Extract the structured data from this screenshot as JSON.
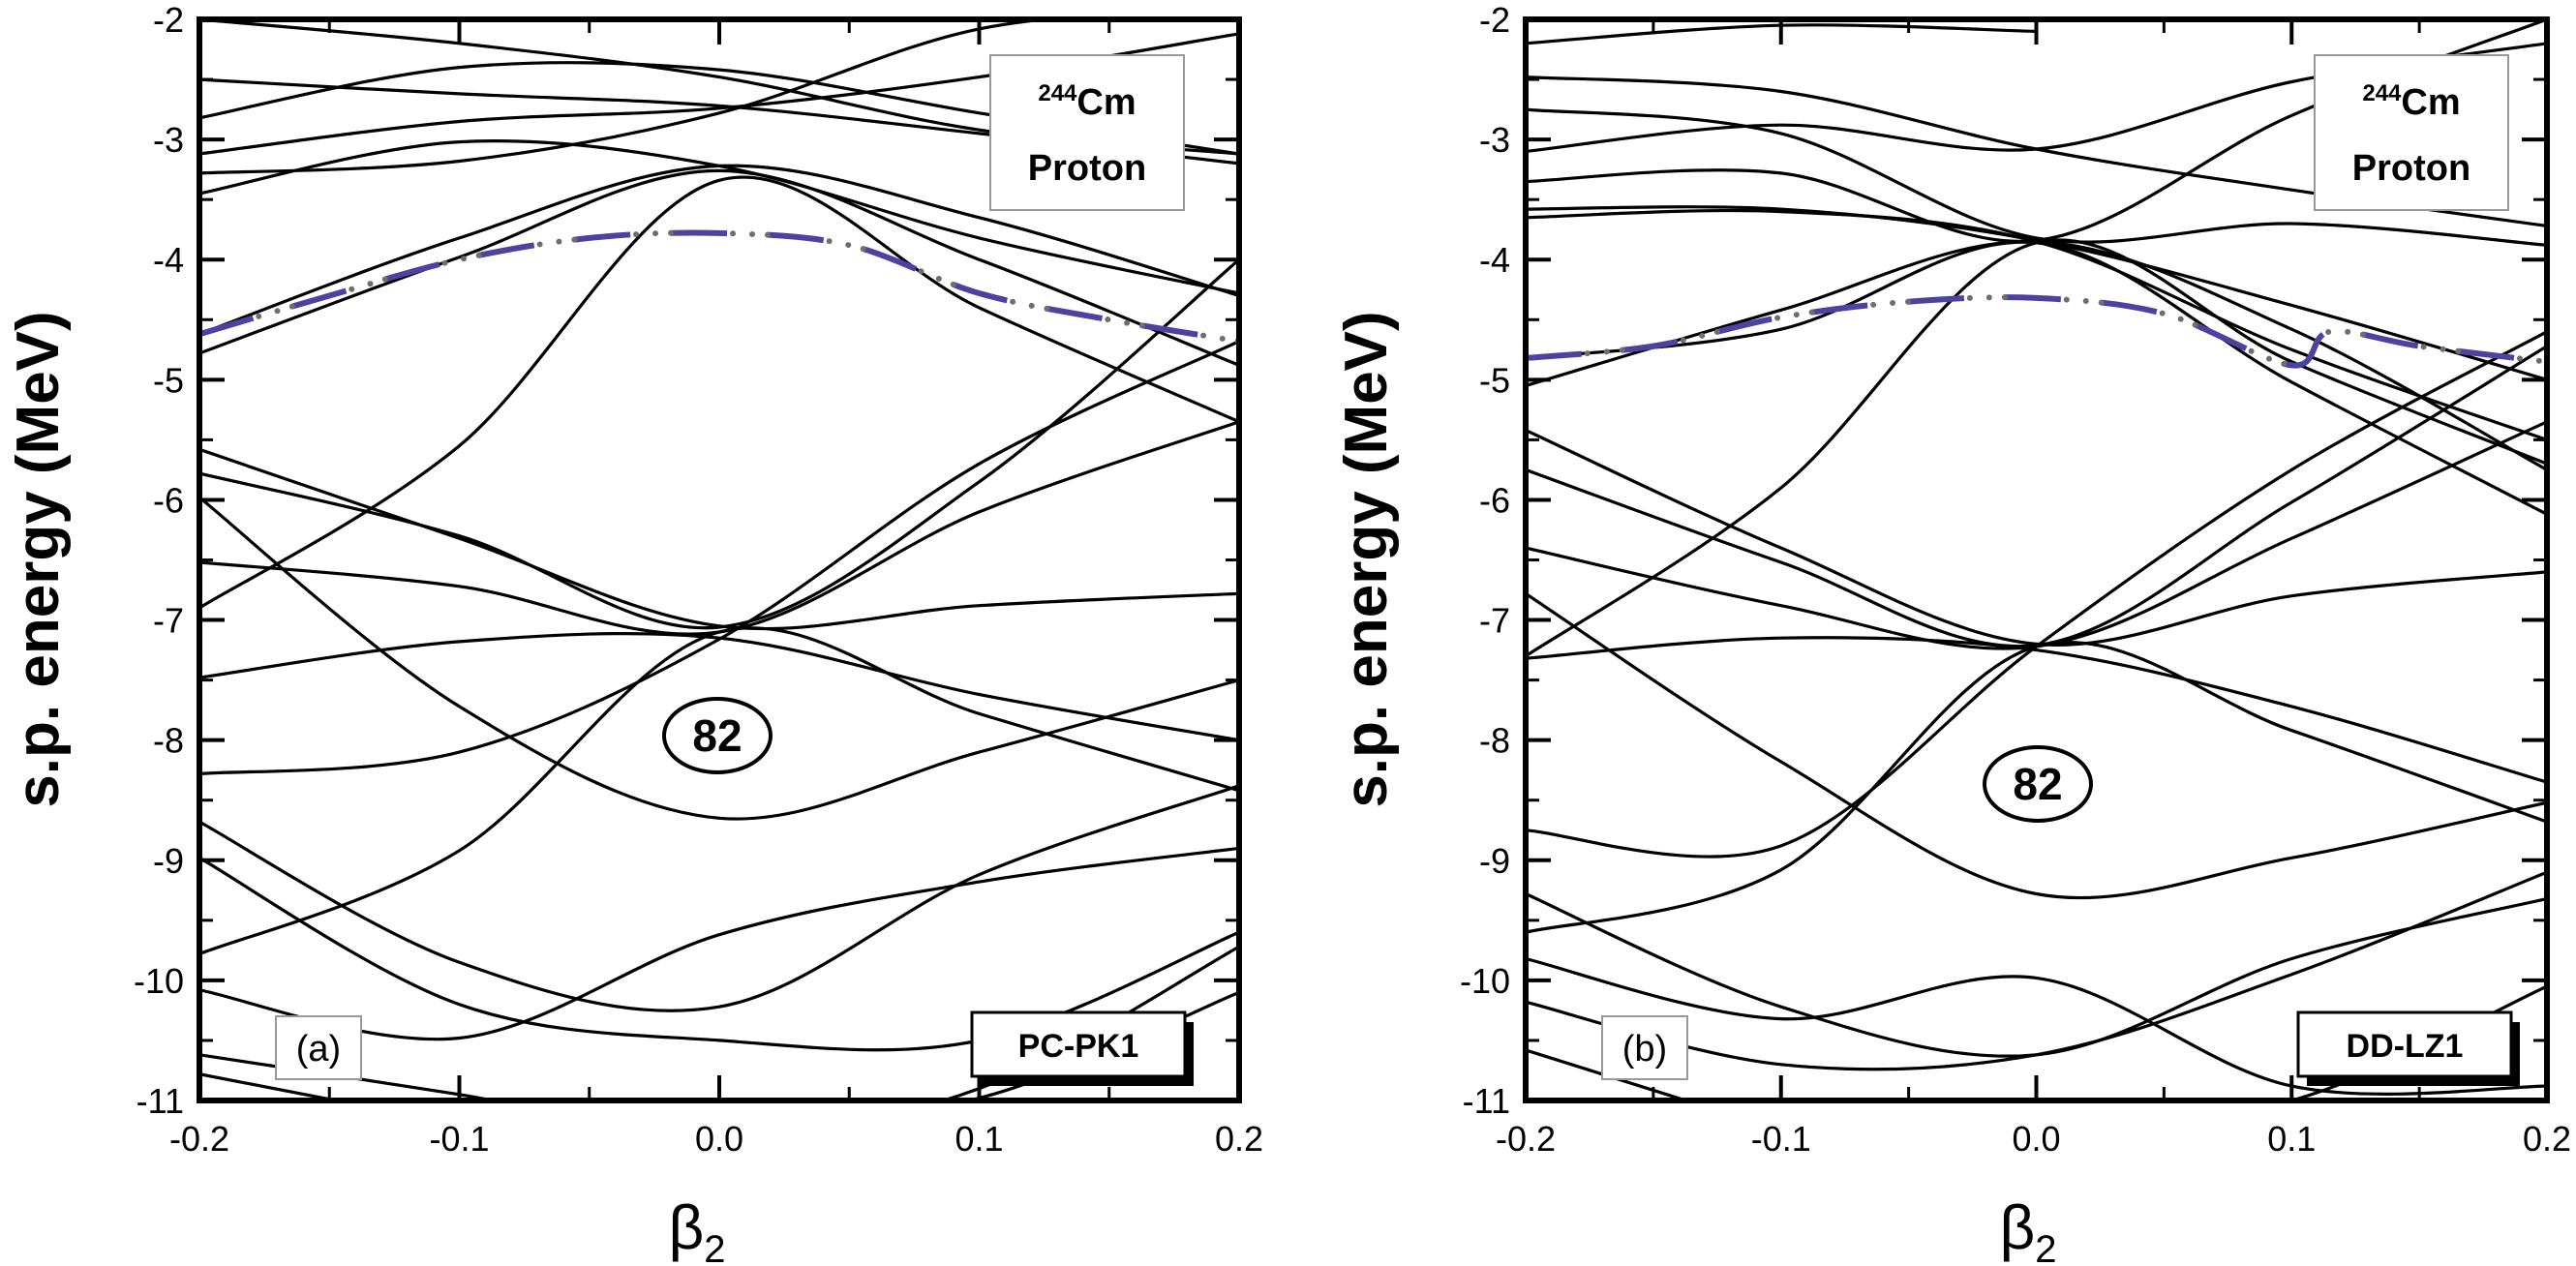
{
  "chart_data": [
    {
      "type": "line",
      "panel_label": "(a)",
      "model": "PC-PK1",
      "nucleus_mass": "244",
      "nucleus_symbol": "Cm",
      "particle": "Proton",
      "magic_number": "82",
      "xlabel": "β",
      "xlabel_sub": "2",
      "ylabel": "s.p. energy (MeV)",
      "xlim": [
        -0.2,
        0.2
      ],
      "ylim": [
        -11,
        -2
      ],
      "xticks": [
        "-0.2",
        "-0.1",
        "0.0",
        "0.1",
        "0.2"
      ],
      "yticks": [
        "-2",
        "-3",
        "-4",
        "-5",
        "-6",
        "-7",
        "-8",
        "-9",
        "-10",
        "-11"
      ],
      "grid": false,
      "fermi_level": {
        "style": "dash-dot",
        "color": "#4a44a0",
        "points": [
          [
            -0.2,
            -4.62
          ],
          [
            -0.15,
            -4.3
          ],
          [
            -0.1,
            -4.0
          ],
          [
            -0.05,
            -3.82
          ],
          [
            0.0,
            -3.78
          ],
          [
            0.05,
            -3.88
          ],
          [
            0.1,
            -4.28
          ],
          [
            0.15,
            -4.5
          ],
          [
            0.2,
            -4.68
          ]
        ]
      },
      "series": [
        {
          "points": [
            [
              -0.2,
              -2.0
            ],
            [
              -0.1,
              -2.2
            ],
            [
              0.0,
              -2.48
            ],
            [
              0.1,
              -2.92
            ],
            [
              0.2,
              -3.12
            ]
          ]
        },
        {
          "points": [
            [
              -0.2,
              -2.5
            ],
            [
              -0.1,
              -2.62
            ],
            [
              0.0,
              -2.72
            ],
            [
              0.1,
              -2.95
            ],
            [
              0.2,
              -3.2
            ]
          ]
        },
        {
          "points": [
            [
              -0.2,
              -2.82
            ],
            [
              -0.1,
              -2.4
            ],
            [
              0.0,
              -2.42
            ],
            [
              0.1,
              -2.78
            ],
            [
              0.2,
              -3.12
            ]
          ]
        },
        {
          "points": [
            [
              -0.2,
              -3.12
            ],
            [
              -0.1,
              -2.85
            ],
            [
              0.0,
              -2.74
            ],
            [
              0.1,
              -2.48
            ],
            [
              0.2,
              -2.12
            ]
          ]
        },
        {
          "points": [
            [
              -0.2,
              -3.28
            ],
            [
              -0.1,
              -3.18
            ],
            [
              0.0,
              -2.78
            ],
            [
              0.1,
              -2.08
            ],
            [
              0.2,
              -1.9
            ]
          ]
        },
        {
          "points": [
            [
              -0.2,
              -3.45
            ],
            [
              -0.1,
              -3.02
            ],
            [
              0.0,
              -3.22
            ],
            [
              0.1,
              -3.82
            ],
            [
              0.2,
              -4.28
            ]
          ]
        },
        {
          "points": [
            [
              -0.2,
              -4.62
            ],
            [
              -0.1,
              -3.82
            ],
            [
              0.0,
              -3.22
            ],
            [
              0.1,
              -3.65
            ],
            [
              0.2,
              -4.3
            ]
          ]
        },
        {
          "points": [
            [
              -0.2,
              -4.78
            ],
            [
              -0.1,
              -3.98
            ],
            [
              0.0,
              -3.26
            ],
            [
              0.1,
              -4.0
            ],
            [
              0.2,
              -4.88
            ]
          ]
        },
        {
          "points": [
            [
              -0.2,
              -6.9
            ],
            [
              -0.1,
              -5.55
            ],
            [
              0.0,
              -3.34
            ],
            [
              0.1,
              -4.4
            ],
            [
              0.2,
              -5.35
            ]
          ]
        },
        {
          "points": [
            [
              -0.2,
              -5.58
            ],
            [
              -0.1,
              -6.32
            ],
            [
              0.0,
              -7.05
            ],
            [
              0.1,
              -6.88
            ],
            [
              0.2,
              -6.78
            ]
          ]
        },
        {
          "points": [
            [
              -0.2,
              -5.78
            ],
            [
              -0.1,
              -6.3
            ],
            [
              0.0,
              -7.06
            ],
            [
              0.1,
              -5.85
            ],
            [
              0.2,
              -4.0
            ]
          ]
        },
        {
          "points": [
            [
              -0.2,
              -6.52
            ],
            [
              -0.1,
              -6.72
            ],
            [
              0.0,
              -7.1
            ],
            [
              0.1,
              -6.1
            ],
            [
              0.2,
              -5.35
            ]
          ]
        },
        {
          "points": [
            [
              -0.2,
              -7.48
            ],
            [
              -0.1,
              -7.18
            ],
            [
              0.0,
              -7.15
            ],
            [
              0.1,
              -7.62
            ],
            [
              0.2,
              -8.0
            ]
          ]
        },
        {
          "points": [
            [
              -0.2,
              -8.28
            ],
            [
              -0.1,
              -8.1
            ],
            [
              0.0,
              -7.16
            ],
            [
              0.1,
              -5.7
            ],
            [
              0.2,
              -4.68
            ]
          ]
        },
        {
          "points": [
            [
              -0.2,
              -5.98
            ],
            [
              -0.1,
              -7.72
            ],
            [
              0.0,
              -8.65
            ],
            [
              0.1,
              -8.1
            ],
            [
              0.2,
              -7.5
            ]
          ]
        },
        {
          "points": [
            [
              -0.2,
              -9.78
            ],
            [
              -0.1,
              -8.92
            ],
            [
              0.0,
              -7.1
            ],
            [
              0.1,
              -7.78
            ],
            [
              0.2,
              -8.42
            ]
          ]
        },
        {
          "points": [
            [
              -0.2,
              -8.68
            ],
            [
              -0.1,
              -9.85
            ],
            [
              0.0,
              -10.22
            ],
            [
              0.1,
              -9.12
            ],
            [
              0.2,
              -8.38
            ]
          ]
        },
        {
          "points": [
            [
              -0.2,
              -8.98
            ],
            [
              -0.1,
              -10.2
            ],
            [
              0.0,
              -10.5
            ],
            [
              0.1,
              -10.5
            ],
            [
              0.2,
              -9.6
            ]
          ]
        },
        {
          "points": [
            [
              -0.2,
              -10.08
            ],
            [
              -0.1,
              -10.48
            ],
            [
              0.0,
              -9.62
            ],
            [
              0.1,
              -9.18
            ],
            [
              0.2,
              -8.9
            ]
          ]
        },
        {
          "points": [
            [
              -0.2,
              -10.62
            ],
            [
              -0.1,
              -10.95
            ],
            [
              0.0,
              -11.3
            ],
            [
              0.1,
              -10.9
            ],
            [
              0.2,
              -9.72
            ]
          ]
        },
        {
          "points": [
            [
              -0.2,
              -10.78
            ],
            [
              -0.1,
              -11.2
            ]
          ]
        },
        {
          "points": [
            [
              0.0,
              -11.2
            ],
            [
              0.1,
              -10.98
            ],
            [
              0.2,
              -10.1
            ]
          ]
        }
      ]
    },
    {
      "type": "line",
      "panel_label": "(b)",
      "model": "DD-LZ1",
      "nucleus_mass": "244",
      "nucleus_symbol": "Cm",
      "particle": "Proton",
      "magic_number": "82",
      "xlabel": "β",
      "xlabel_sub": "2",
      "ylabel": "s.p. energy (MeV)",
      "xlim": [
        -0.2,
        0.2
      ],
      "ylim": [
        -11,
        -2
      ],
      "xticks": [
        "-0.2",
        "-0.1",
        "0.0",
        "0.1",
        "0.2"
      ],
      "yticks": [
        "-2",
        "-3",
        "-4",
        "-5",
        "-6",
        "-7",
        "-8",
        "-9",
        "-10",
        "-11"
      ],
      "grid": false,
      "fermi_level": {
        "style": "dash-dot",
        "color": "#4a44a0",
        "points": [
          [
            -0.2,
            -4.82
          ],
          [
            -0.15,
            -4.72
          ],
          [
            -0.1,
            -4.48
          ],
          [
            -0.05,
            -4.35
          ],
          [
            0.0,
            -4.32
          ],
          [
            0.05,
            -4.45
          ],
          [
            0.1,
            -4.88
          ],
          [
            0.115,
            -4.6
          ],
          [
            0.15,
            -4.72
          ],
          [
            0.2,
            -4.85
          ]
        ]
      },
      "series": [
        {
          "points": [
            [
              -0.2,
              -2.2
            ],
            [
              -0.1,
              -2.05
            ],
            [
              0.0,
              -2.1
            ]
          ]
        },
        {
          "points": [
            [
              -0.2,
              -2.48
            ],
            [
              -0.1,
              -2.6
            ],
            [
              0.0,
              -3.08
            ],
            [
              0.1,
              -3.42
            ],
            [
              0.2,
              -3.72
            ]
          ]
        },
        {
          "points": [
            [
              -0.2,
              -2.75
            ],
            [
              -0.1,
              -2.95
            ],
            [
              0.0,
              -3.82
            ],
            [
              0.1,
              -3.7
            ],
            [
              0.2,
              -3.88
            ]
          ]
        },
        {
          "points": [
            [
              -0.2,
              -3.1
            ],
            [
              -0.1,
              -2.88
            ],
            [
              0.0,
              -3.08
            ],
            [
              0.1,
              -2.52
            ],
            [
              0.2,
              -2.2
            ]
          ]
        },
        {
          "points": [
            [
              -0.2,
              -3.35
            ],
            [
              -0.1,
              -3.28
            ],
            [
              0.0,
              -3.84
            ],
            [
              0.1,
              -2.8
            ],
            [
              0.2,
              -2.0
            ]
          ]
        },
        {
          "points": [
            [
              -0.2,
              -3.58
            ],
            [
              -0.1,
              -3.58
            ],
            [
              0.0,
              -3.84
            ],
            [
              0.1,
              -4.38
            ],
            [
              0.2,
              -5.0
            ]
          ]
        },
        {
          "points": [
            [
              -0.2,
              -3.65
            ],
            [
              -0.1,
              -3.6
            ],
            [
              0.0,
              -3.85
            ],
            [
              0.1,
              -4.75
            ],
            [
              0.2,
              -5.5
            ]
          ]
        },
        {
          "points": [
            [
              -0.2,
              -5.05
            ],
            [
              -0.1,
              -4.42
            ],
            [
              0.0,
              -3.85
            ],
            [
              0.1,
              -4.58
            ],
            [
              0.2,
              -5.75
            ]
          ]
        },
        {
          "points": [
            [
              -0.2,
              -4.82
            ],
            [
              -0.1,
              -4.58
            ],
            [
              0.0,
              -3.86
            ],
            [
              0.1,
              -5.02
            ],
            [
              0.2,
              -6.12
            ]
          ]
        },
        {
          "points": [
            [
              -0.2,
              -7.3
            ],
            [
              -0.1,
              -5.9
            ],
            [
              0.0,
              -3.86
            ],
            [
              0.1,
              -4.85
            ],
            [
              0.2,
              -5.7
            ]
          ]
        },
        {
          "points": [
            [
              -0.2,
              -5.42
            ],
            [
              -0.1,
              -6.4
            ],
            [
              0.0,
              -7.2
            ],
            [
              0.1,
              -6.8
            ],
            [
              0.2,
              -6.6
            ]
          ]
        },
        {
          "points": [
            [
              -0.2,
              -5.75
            ],
            [
              -0.1,
              -6.52
            ],
            [
              0.0,
              -7.21
            ],
            [
              0.1,
              -6.02
            ],
            [
              0.2,
              -4.72
            ]
          ]
        },
        {
          "points": [
            [
              -0.2,
              -6.4
            ],
            [
              -0.1,
              -6.88
            ],
            [
              0.0,
              -7.22
            ],
            [
              0.1,
              -6.32
            ],
            [
              0.2,
              -5.35
            ]
          ]
        },
        {
          "points": [
            [
              -0.2,
              -7.32
            ],
            [
              -0.1,
              -7.15
            ],
            [
              0.0,
              -7.25
            ],
            [
              0.1,
              -7.72
            ],
            [
              0.2,
              -8.35
            ]
          ]
        },
        {
          "points": [
            [
              -0.2,
              -6.78
            ],
            [
              -0.1,
              -8.18
            ],
            [
              0.0,
              -9.28
            ],
            [
              0.1,
              -8.98
            ],
            [
              0.2,
              -8.52
            ]
          ]
        },
        {
          "points": [
            [
              -0.2,
              -9.6
            ],
            [
              -0.1,
              -9.08
            ],
            [
              0.0,
              -7.22
            ],
            [
              0.1,
              -7.92
            ],
            [
              0.2,
              -8.68
            ]
          ]
        },
        {
          "points": [
            [
              -0.2,
              -8.75
            ],
            [
              -0.1,
              -8.88
            ],
            [
              0.0,
              -7.22
            ],
            [
              0.1,
              -5.75
            ],
            [
              0.2,
              -4.6
            ]
          ]
        },
        {
          "points": [
            [
              -0.2,
              -9.28
            ],
            [
              -0.1,
              -10.22
            ],
            [
              0.0,
              -10.62
            ],
            [
              0.1,
              -9.82
            ],
            [
              0.2,
              -9.32
            ]
          ]
        },
        {
          "points": [
            [
              -0.2,
              -10.18
            ],
            [
              -0.1,
              -10.7
            ],
            [
              0.0,
              -10.62
            ],
            [
              0.1,
              -9.95
            ],
            [
              0.2,
              -9.1
            ]
          ]
        },
        {
          "points": [
            [
              -0.2,
              -9.82
            ],
            [
              -0.1,
              -10.32
            ],
            [
              0.0,
              -9.98
            ],
            [
              0.1,
              -10.88
            ],
            [
              0.2,
              -10.88
            ]
          ]
        },
        {
          "points": [
            [
              -0.2,
              -10.58
            ],
            [
              -0.1,
              -11.25
            ]
          ]
        },
        {
          "points": [
            [
              0.0,
              -11.2
            ],
            [
              0.1,
              -11.0
            ],
            [
              0.2,
              -10.05
            ]
          ]
        }
      ]
    }
  ]
}
